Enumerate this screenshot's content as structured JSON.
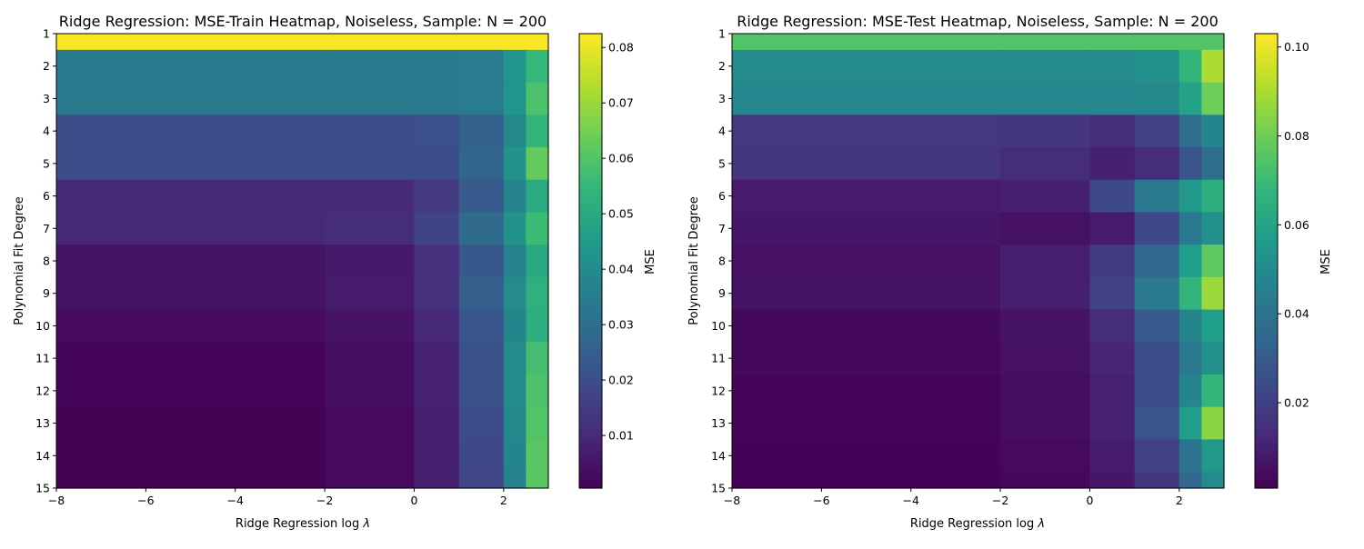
{
  "chart_data": [
    {
      "type": "heatmap",
      "title": "Ridge Regression: MSE-Train Heatmap, Noiseless, Sample: N = 200",
      "xlabel_prefix": "Ridge Regression log ",
      "xlabel_symbol": "λ",
      "ylabel": "Polynomial Fit Degree",
      "colorbar_label": "MSE",
      "colormap": "viridis",
      "xlim": [
        -8,
        3
      ],
      "x_ticks": [
        -8,
        -6,
        -4,
        -2,
        0,
        2
      ],
      "x_tick_labels": [
        "−8",
        "−6",
        "−4",
        "−2",
        "0",
        "2"
      ],
      "y_ticks": [
        1,
        2,
        3,
        4,
        5,
        6,
        7,
        8,
        9,
        10,
        11,
        12,
        13,
        14,
        15
      ],
      "y_tick_labels": [
        "1",
        "2",
        "3",
        "4",
        "5",
        "6",
        "7",
        "8",
        "9",
        "10",
        "11",
        "12",
        "13",
        "14",
        "15"
      ],
      "x_samples": [
        -8,
        -2,
        0,
        1,
        2,
        2.5,
        3
      ],
      "z": [
        [
          0.082,
          0.082,
          0.082,
          0.082,
          0.082,
          0.082,
          0.082
        ],
        [
          0.034,
          0.034,
          0.034,
          0.034,
          0.036,
          0.05,
          0.06
        ],
        [
          0.034,
          0.034,
          0.034,
          0.034,
          0.036,
          0.05,
          0.068
        ],
        [
          0.02,
          0.02,
          0.02,
          0.021,
          0.03,
          0.048,
          0.06
        ],
        [
          0.02,
          0.02,
          0.02,
          0.02,
          0.034,
          0.05,
          0.075
        ],
        [
          0.009,
          0.01,
          0.011,
          0.018,
          0.03,
          0.045,
          0.056
        ],
        [
          0.009,
          0.01,
          0.012,
          0.022,
          0.036,
          0.048,
          0.065
        ],
        [
          0.004,
          0.005,
          0.007,
          0.016,
          0.03,
          0.044,
          0.056
        ],
        [
          0.004,
          0.005,
          0.008,
          0.016,
          0.034,
          0.045,
          0.06
        ],
        [
          0.002,
          0.003,
          0.006,
          0.014,
          0.03,
          0.046,
          0.058
        ],
        [
          0.001,
          0.002,
          0.005,
          0.012,
          0.03,
          0.05,
          0.065
        ],
        [
          0.001,
          0.002,
          0.005,
          0.012,
          0.03,
          0.05,
          0.068
        ],
        [
          0.0007,
          0.001,
          0.004,
          0.011,
          0.028,
          0.05,
          0.07
        ],
        [
          0.0007,
          0.001,
          0.004,
          0.011,
          0.026,
          0.05,
          0.072
        ],
        [
          0.0007,
          0.001,
          0.004,
          0.011,
          0.024,
          0.05,
          0.072
        ]
      ],
      "clim": [
        0.0005,
        0.0825
      ],
      "cbar_ticks": [
        0.01,
        0.02,
        0.03,
        0.04,
        0.05,
        0.06,
        0.07,
        0.08
      ],
      "cbar_tick_labels": [
        "0.01",
        "0.02",
        "0.03",
        "0.04",
        "0.05",
        "0.06",
        "0.07",
        "0.08"
      ]
    },
    {
      "type": "heatmap",
      "title": "Ridge Regression: MSE-Test Heatmap, Noiseless, Sample: N = 200",
      "xlabel_prefix": "Ridge Regression log ",
      "xlabel_symbol": "λ",
      "ylabel": "Polynomial Fit Degree",
      "colorbar_label": "MSE",
      "colormap": "viridis",
      "xlim": [
        -8,
        3
      ],
      "x_ticks": [
        -8,
        -6,
        -4,
        -2,
        0,
        2
      ],
      "x_tick_labels": [
        "−8",
        "−6",
        "−4",
        "−2",
        "0",
        "2"
      ],
      "y_ticks": [
        1,
        2,
        3,
        4,
        5,
        6,
        7,
        8,
        9,
        10,
        11,
        12,
        13,
        14,
        15
      ],
      "y_tick_labels": [
        "1",
        "2",
        "3",
        "4",
        "5",
        "6",
        "7",
        "8",
        "9",
        "10",
        "11",
        "12",
        "13",
        "14",
        "15"
      ],
      "x_samples": [
        -8,
        -2,
        0,
        1,
        2,
        2.5,
        3
      ],
      "z": [
        [
          0.075,
          0.075,
          0.075,
          0.075,
          0.075,
          0.075,
          0.075
        ],
        [
          0.05,
          0.05,
          0.05,
          0.05,
          0.055,
          0.08,
          0.1
        ],
        [
          0.048,
          0.048,
          0.048,
          0.048,
          0.05,
          0.07,
          0.09
        ],
        [
          0.018,
          0.018,
          0.016,
          0.012,
          0.03,
          0.045,
          0.05
        ],
        [
          0.018,
          0.016,
          0.012,
          0.008,
          0.02,
          0.035,
          0.04
        ],
        [
          0.008,
          0.008,
          0.012,
          0.035,
          0.05,
          0.06,
          0.07
        ],
        [
          0.008,
          0.006,
          0.005,
          0.012,
          0.035,
          0.05,
          0.055
        ],
        [
          0.005,
          0.006,
          0.012,
          0.025,
          0.045,
          0.07,
          0.085
        ],
        [
          0.005,
          0.007,
          0.012,
          0.03,
          0.055,
          0.08,
          0.095
        ],
        [
          0.002,
          0.004,
          0.008,
          0.02,
          0.04,
          0.055,
          0.06
        ],
        [
          0.002,
          0.004,
          0.007,
          0.016,
          0.035,
          0.05,
          0.055
        ],
        [
          0.001,
          0.003,
          0.006,
          0.015,
          0.035,
          0.06,
          0.075
        ],
        [
          0.001,
          0.003,
          0.006,
          0.015,
          0.04,
          0.075,
          0.095
        ],
        [
          0.001,
          0.002,
          0.005,
          0.012,
          0.03,
          0.05,
          0.06
        ],
        [
          0.001,
          0.002,
          0.004,
          0.01,
          0.025,
          0.045,
          0.055
        ]
      ],
      "clim": [
        0.0008,
        0.103
      ],
      "cbar_ticks": [
        0.02,
        0.04,
        0.06,
        0.08,
        0.1
      ],
      "cbar_tick_labels": [
        "0.02",
        "0.04",
        "0.06",
        "0.08",
        "0.10"
      ]
    }
  ]
}
